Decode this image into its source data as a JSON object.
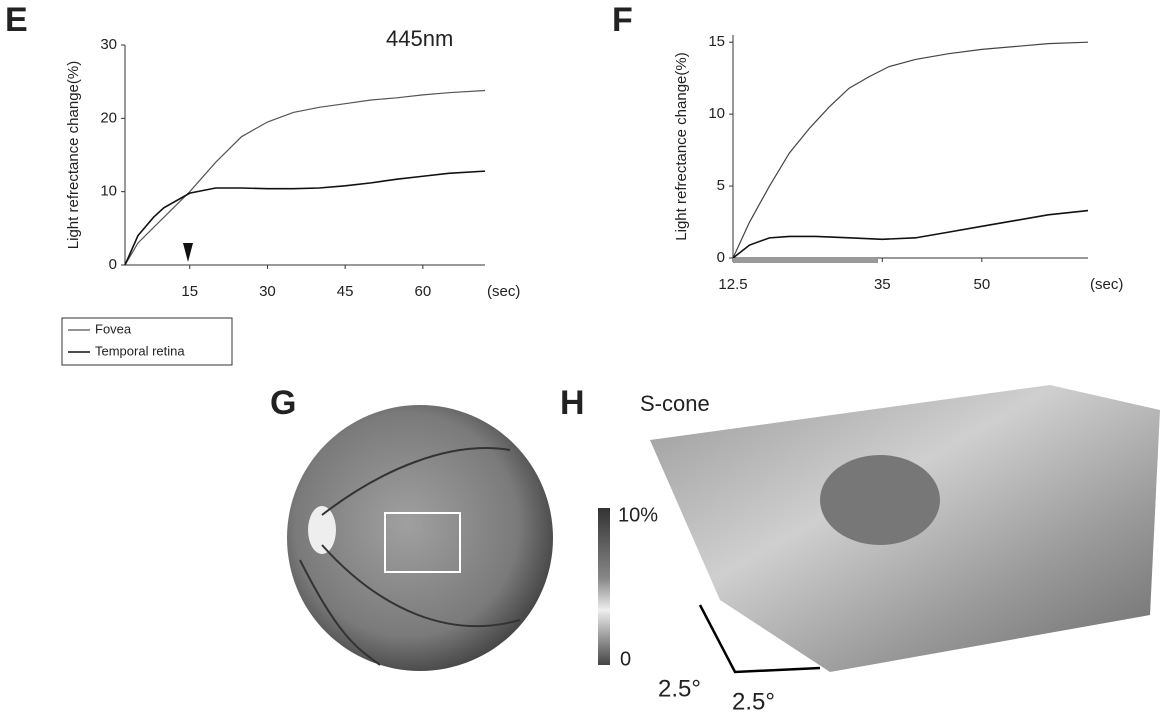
{
  "chart_data": [
    {
      "type": "line",
      "panel": "E",
      "annotation": "445nm",
      "y_label": "Light refrectance change(%)",
      "x_label": "(sec)",
      "xlim": [
        2.5,
        72
      ],
      "xticks": [
        15,
        30,
        45,
        60
      ],
      "ylim": [
        0,
        30
      ],
      "yticks": [
        0,
        10,
        20,
        30
      ],
      "series": [
        {
          "name": "Fovea",
          "color": "#555555",
          "x": [
            2.5,
            5,
            10,
            15,
            20,
            25,
            30,
            35,
            40,
            45,
            50,
            55,
            60,
            65,
            72
          ],
          "values": [
            0,
            3,
            6.5,
            10,
            14,
            17.5,
            19.5,
            20.8,
            21.5,
            22,
            22.5,
            22.8,
            23.2,
            23.5,
            23.8
          ]
        },
        {
          "name": "Temporal retina",
          "color": "#111111",
          "x": [
            2.5,
            5,
            8,
            10,
            15,
            20,
            25,
            30,
            35,
            40,
            45,
            50,
            55,
            60,
            65,
            72
          ],
          "values": [
            0,
            4,
            6.5,
            7.8,
            9.8,
            10.5,
            10.5,
            10.4,
            10.4,
            10.5,
            10.8,
            11.2,
            11.7,
            12.1,
            12.5,
            12.8
          ]
        }
      ]
    },
    {
      "type": "line",
      "panel": "F",
      "y_label": "Light refrectance change(%)",
      "x_label": "(sec)",
      "xlim": [
        12.5,
        66
      ],
      "xticks": [
        12.5,
        35,
        50
      ],
      "ylim": [
        0,
        15.5
      ],
      "yticks": [
        0,
        5,
        10,
        15
      ],
      "series": [
        {
          "color": "#444444",
          "x": [
            12.5,
            15,
            18,
            21,
            24,
            27,
            30,
            33,
            36,
            40,
            45,
            50,
            55,
            60,
            66
          ],
          "values": [
            0,
            2.5,
            5,
            7.3,
            9,
            10.5,
            11.8,
            12.6,
            13.3,
            13.8,
            14.2,
            14.5,
            14.7,
            14.9,
            15.0
          ]
        },
        {
          "color": "#111111",
          "x": [
            12.5,
            15,
            18,
            21,
            25,
            30,
            35,
            40,
            45,
            50,
            55,
            60,
            66
          ],
          "values": [
            0,
            0.9,
            1.4,
            1.5,
            1.5,
            1.4,
            1.3,
            1.4,
            1.8,
            2.2,
            2.6,
            3.0,
            3.3
          ]
        }
      ]
    }
  ],
  "panel_g": {
    "label": "G"
  },
  "panel_h": {
    "label": "H",
    "title": "S-cone",
    "colorbar_labels": [
      "10%",
      "0"
    ],
    "scale_labels": [
      "2.5°",
      "2.5°"
    ]
  }
}
